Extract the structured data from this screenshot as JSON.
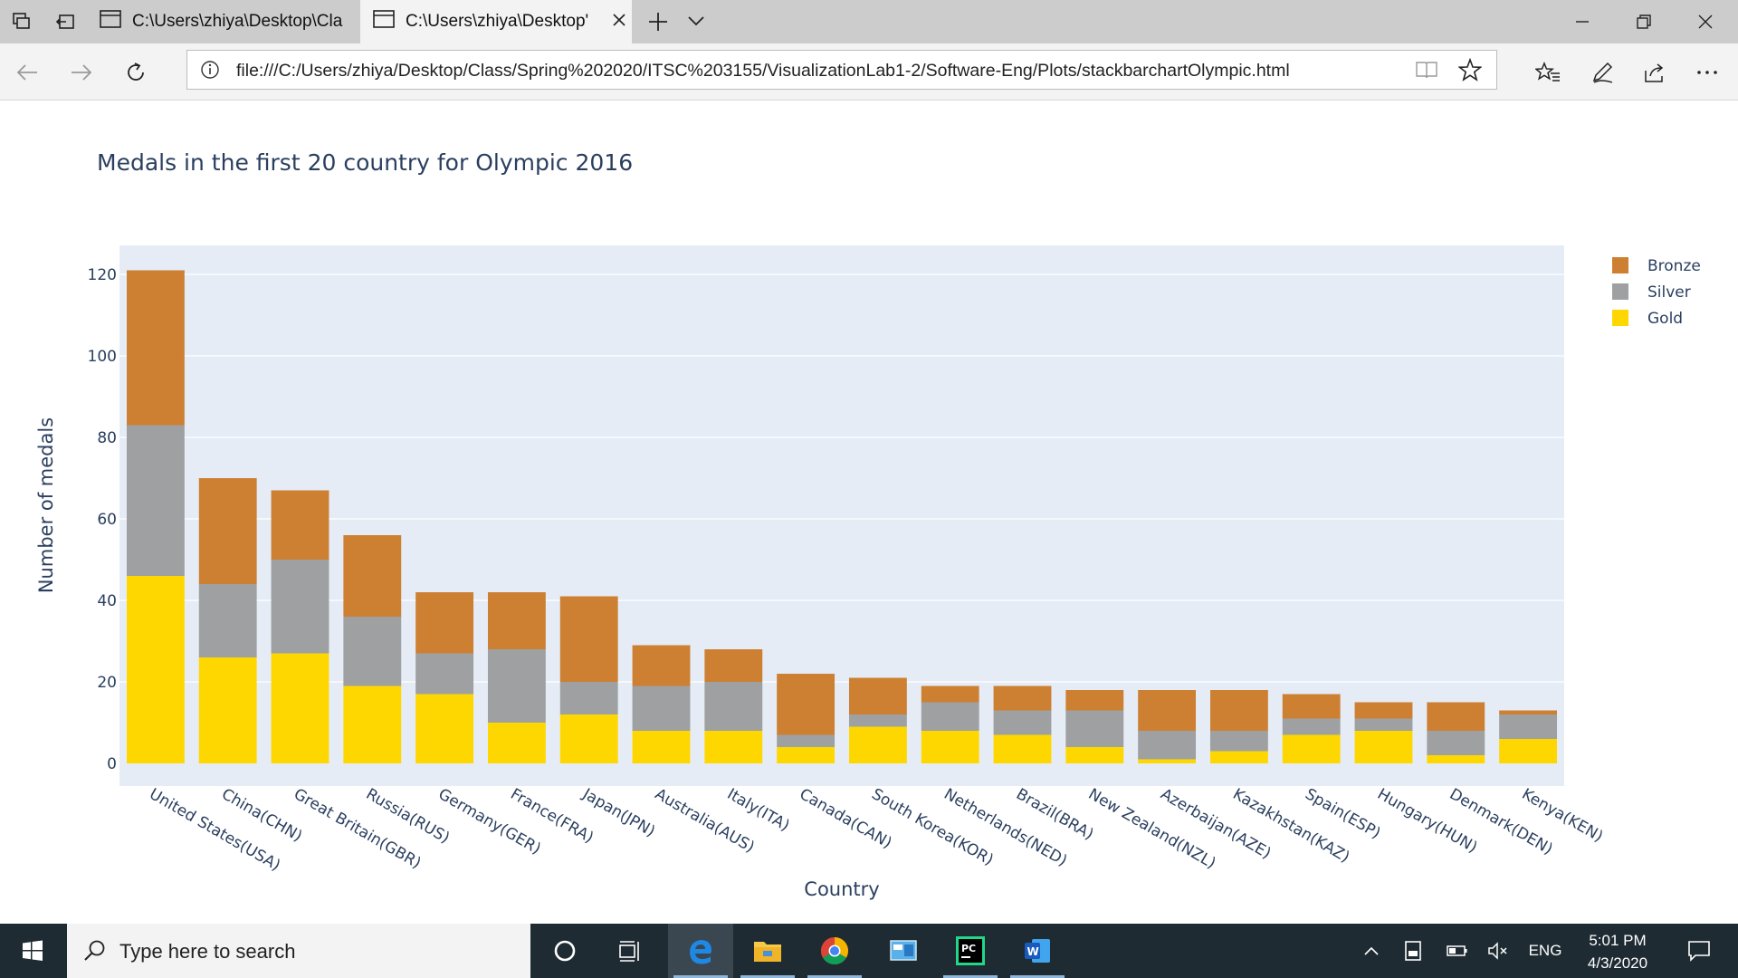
{
  "browser": {
    "tabs": [
      {
        "title": "C:\\Users\\zhiya\\Desktop\\Cla",
        "active": false
      },
      {
        "title": "C:\\Users\\zhiya\\Desktop'",
        "active": true
      }
    ],
    "url": "file:///C:/Users/zhiya/Desktop/Class/Spring%202020/ITSC%203155/VisualizationLab1-2/Software-Eng/Plots/stackbarchartOlympic.html",
    "icons": {
      "tab_actions": "tab-actions-icon",
      "tab_aside": "set-tabs-aside-icon",
      "page": "page-icon",
      "close_tab": "close-icon",
      "new_tab": "plus-icon",
      "tab_list": "chevron-down-icon",
      "minimize": "minimize-icon",
      "restore": "restore-icon",
      "close_window": "close-icon",
      "back": "arrow-left-icon",
      "forward": "arrow-right-icon",
      "refresh": "refresh-icon",
      "site_info": "info-icon",
      "reading_view": "book-icon",
      "favorite": "star-icon",
      "favorites_hub": "favorites-list-icon",
      "notes": "pen-icon",
      "share": "share-icon",
      "more": "ellipsis-icon"
    }
  },
  "chart_data": {
    "type": "bar",
    "stacked": true,
    "title": "Medals in the first 20 country for Olympic 2016",
    "xlabel": "Country",
    "ylabel": "Number of medals",
    "ylim": [
      0,
      121
    ],
    "yticks": [
      0,
      20,
      40,
      60,
      80,
      100,
      120
    ],
    "grid": true,
    "legend_position": "top-right",
    "categories": [
      "United States(USA)",
      "China(CHN)",
      "Great Britain(GBR)",
      "Russia(RUS)",
      "Germany(GER)",
      "France(FRA)",
      "Japan(JPN)",
      "Australia(AUS)",
      "Italy(ITA)",
      "Canada(CAN)",
      "South Korea(KOR)",
      "Netherlands(NED)",
      "Brazil(BRA)",
      "New Zealand(NZL)",
      "Azerbaijan(AZE)",
      "Kazakhstan(KAZ)",
      "Spain(ESP)",
      "Hungary(HUN)",
      "Denmark(DEN)",
      "Kenya(KEN)"
    ],
    "series": [
      {
        "name": "Gold",
        "color": "#ffd700",
        "values": [
          46,
          26,
          27,
          19,
          17,
          10,
          12,
          8,
          8,
          4,
          9,
          8,
          7,
          4,
          1,
          3,
          7,
          8,
          2,
          6
        ]
      },
      {
        "name": "Silver",
        "color": "#9ea0a1",
        "values": [
          37,
          18,
          23,
          17,
          10,
          18,
          8,
          11,
          12,
          3,
          3,
          7,
          6,
          9,
          7,
          5,
          4,
          3,
          6,
          6
        ]
      },
      {
        "name": "Bronze",
        "color": "#cd7f32",
        "values": [
          38,
          26,
          17,
          20,
          15,
          14,
          21,
          10,
          8,
          15,
          9,
          4,
          6,
          5,
          10,
          10,
          6,
          4,
          7,
          1
        ]
      }
    ],
    "legend_order": [
      "Bronze",
      "Silver",
      "Gold"
    ]
  },
  "taskbar": {
    "search_placeholder": "Type here to search",
    "time": "5:01 PM",
    "date": "4/3/2020",
    "language": "ENG",
    "icons": {
      "start": "windows-start-icon",
      "search": "search-icon",
      "cortana": "cortana-circle-icon",
      "task_view": "task-view-icon",
      "apps": [
        "edge-browser-icon",
        "file-explorer-icon",
        "chrome-icon",
        "control-panel-icon",
        "pycharm-icon",
        "word-icon"
      ],
      "tray": [
        "show-hidden-icons-chevron-up-icon",
        "storage-device-icon",
        "battery-icon",
        "speaker-muted-icon"
      ],
      "notifications": "notification-center-icon"
    }
  }
}
